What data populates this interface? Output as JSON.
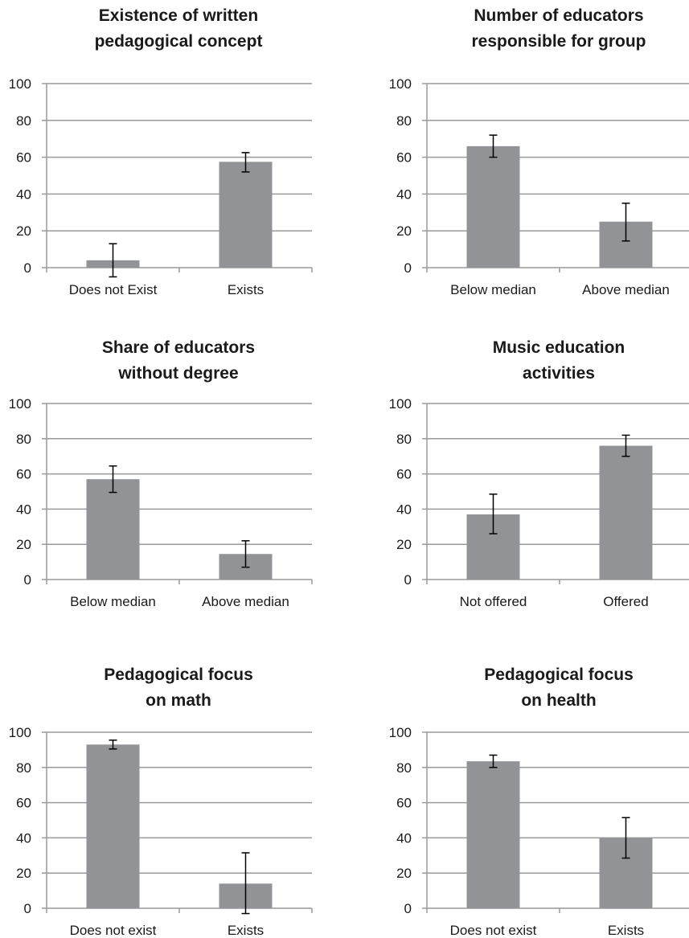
{
  "chart_data": [
    {
      "type": "bar",
      "title": [
        "Existence of written",
        "pedagogical concept"
      ],
      "categories": [
        "Does not Exist",
        "Exists"
      ],
      "values": [
        4,
        57.5
      ],
      "error_low": [
        -5,
        52
      ],
      "error_high": [
        13,
        62.5
      ],
      "ylim": [
        0,
        100
      ],
      "yticks": [
        0,
        20,
        40,
        60,
        80,
        100
      ],
      "grid": true,
      "bar_color": "#929397"
    },
    {
      "type": "bar",
      "title": [
        "Number of educators",
        "responsible for group"
      ],
      "categories": [
        "Below median",
        "Above median"
      ],
      "values": [
        66,
        25
      ],
      "error_low": [
        60,
        14.5
      ],
      "error_high": [
        72,
        35
      ],
      "ylim": [
        0,
        100
      ],
      "yticks": [
        0,
        20,
        40,
        60,
        80,
        100
      ],
      "grid": true,
      "bar_color": "#929397"
    },
    {
      "type": "bar",
      "title": [
        "Share of educators",
        "without degree"
      ],
      "categories": [
        "Below median",
        "Above median"
      ],
      "values": [
        57,
        14.5
      ],
      "error_low": [
        49.5,
        7
      ],
      "error_high": [
        64.5,
        22
      ],
      "ylim": [
        0,
        100
      ],
      "yticks": [
        0,
        20,
        40,
        60,
        80,
        100
      ],
      "grid": true,
      "bar_color": "#929397"
    },
    {
      "type": "bar",
      "title": [
        "Music education",
        "activities"
      ],
      "categories": [
        "Not offered",
        "Offered"
      ],
      "values": [
        37,
        76
      ],
      "error_low": [
        26,
        70
      ],
      "error_high": [
        48.5,
        82
      ],
      "ylim": [
        0,
        100
      ],
      "yticks": [
        0,
        20,
        40,
        60,
        80,
        100
      ],
      "grid": true,
      "bar_color": "#929397"
    },
    {
      "type": "bar",
      "title": [
        "Pedagogical focus",
        "on math"
      ],
      "categories": [
        "Does not exist",
        "Exists"
      ],
      "values": [
        93,
        14
      ],
      "error_low": [
        90.5,
        -3
      ],
      "error_high": [
        95.5,
        31.5
      ],
      "ylim": [
        0,
        100
      ],
      "yticks": [
        0,
        20,
        40,
        60,
        80,
        100
      ],
      "grid": true,
      "bar_color": "#929397"
    },
    {
      "type": "bar",
      "title": [
        "Pedagogical focus",
        "on health"
      ],
      "categories": [
        "Does not exist",
        "Exists"
      ],
      "values": [
        83.5,
        40
      ],
      "error_low": [
        80,
        28.5
      ],
      "error_high": [
        87,
        51.5
      ],
      "ylim": [
        0,
        100
      ],
      "yticks": [
        0,
        20,
        40,
        60,
        80,
        100
      ],
      "grid": true,
      "bar_color": "#929397"
    }
  ]
}
